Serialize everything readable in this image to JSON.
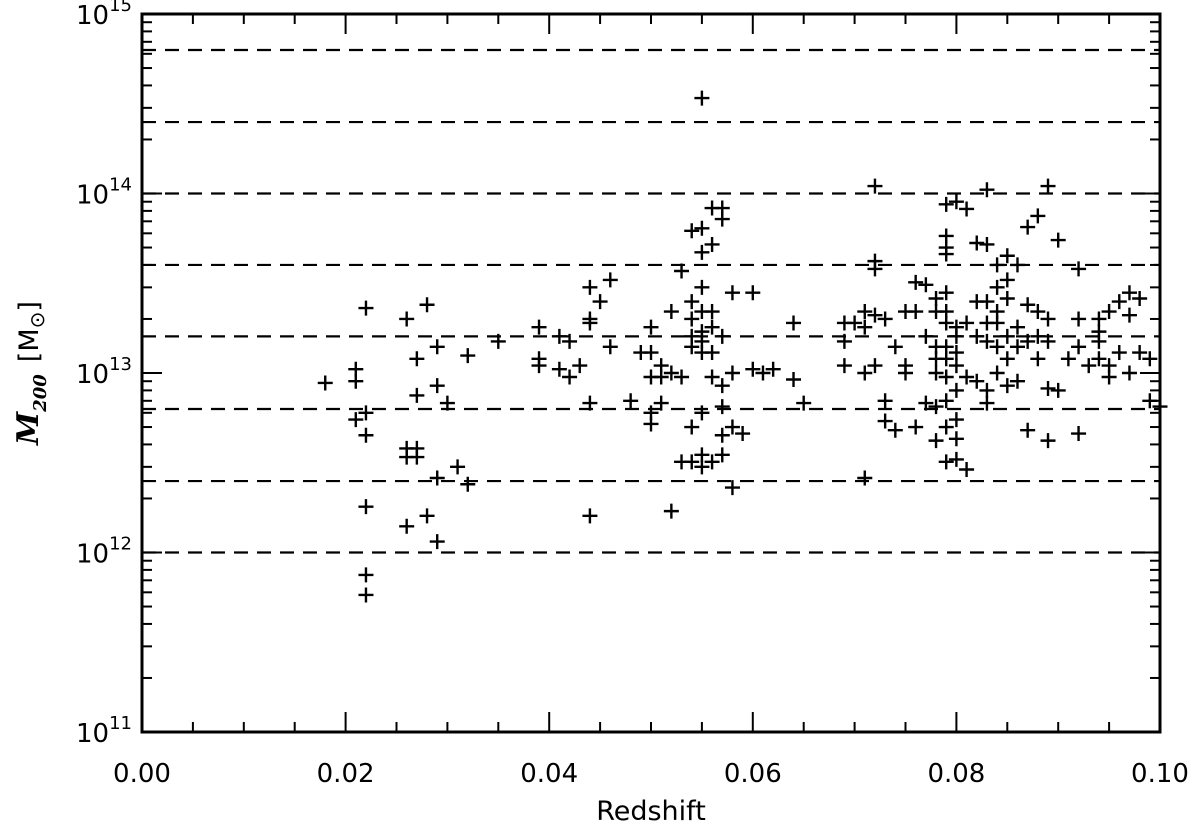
{
  "chart_data": {
    "type": "scatter",
    "marker": "plus",
    "title": "",
    "xlabel": "Redshift",
    "ylabel": {
      "symbol": "M",
      "subscript": "200",
      "unit_open": "[M",
      "unit_symbol": "⊙",
      "unit_close": "]"
    },
    "xlim": [
      0.0,
      0.1
    ],
    "ylim": [
      100000000000.0,
      1000000000000000.0
    ],
    "yscale": "log",
    "grid": false,
    "x_ticks": [
      {
        "value": 0.0,
        "label": "0.00"
      },
      {
        "value": 0.02,
        "label": "0.02"
      },
      {
        "value": 0.04,
        "label": "0.04"
      },
      {
        "value": 0.06,
        "label": "0.06"
      },
      {
        "value": 0.08,
        "label": "0.08"
      },
      {
        "value": 0.1,
        "label": "0.10"
      }
    ],
    "y_ticks": [
      {
        "value": 100000000000.0,
        "base": "10",
        "exp": "11"
      },
      {
        "value": 1000000000000.0,
        "base": "10",
        "exp": "12"
      },
      {
        "value": 10000000000000.0,
        "base": "10",
        "exp": "13"
      },
      {
        "value": 100000000000000.0,
        "base": "10",
        "exp": "14"
      },
      {
        "value": 1000000000000000.0,
        "base": "10",
        "exp": "15"
      }
    ],
    "reference_lines": [
      1000000000000.0,
      2500000000000.0,
      6300000000000.0,
      16000000000000.0,
      40000000000000.0,
      100000000000000.0,
      250000000000000.0,
      630000000000000.0
    ],
    "points": [
      [
        0.018,
        8800000000000.0
      ],
      [
        0.021,
        10500000000000.0
      ],
      [
        0.021,
        9000000000000.0
      ],
      [
        0.021,
        5500000000000.0
      ],
      [
        0.022,
        23000000000000.0
      ],
      [
        0.022,
        6000000000000.0
      ],
      [
        0.022,
        4500000000000.0
      ],
      [
        0.022,
        1800000000000.0
      ],
      [
        0.022,
        750000000000.0
      ],
      [
        0.022,
        580000000000.0
      ],
      [
        0.026,
        20000000000000.0
      ],
      [
        0.026,
        3800000000000.0
      ],
      [
        0.026,
        3400000000000.0
      ],
      [
        0.026,
        1400000000000.0
      ],
      [
        0.027,
        12000000000000.0
      ],
      [
        0.027,
        7500000000000.0
      ],
      [
        0.027,
        3800000000000.0
      ],
      [
        0.027,
        3400000000000.0
      ],
      [
        0.028,
        24000000000000.0
      ],
      [
        0.028,
        1600000000000.0
      ],
      [
        0.029,
        14000000000000.0
      ],
      [
        0.029,
        8500000000000.0
      ],
      [
        0.029,
        2600000000000.0
      ],
      [
        0.029,
        1150000000000.0
      ],
      [
        0.03,
        6800000000000.0
      ],
      [
        0.031,
        3000000000000.0
      ],
      [
        0.032,
        12500000000000.0
      ],
      [
        0.032,
        2400000000000.0
      ],
      [
        0.035,
        15000000000000.0
      ],
      [
        0.039,
        18000000000000.0
      ],
      [
        0.039,
        12000000000000.0
      ],
      [
        0.039,
        11000000000000.0
      ],
      [
        0.041,
        16000000000000.0
      ],
      [
        0.041,
        10500000000000.0
      ],
      [
        0.042,
        15000000000000.0
      ],
      [
        0.042,
        9500000000000.0
      ],
      [
        0.043,
        11000000000000.0
      ],
      [
        0.044,
        30000000000000.0
      ],
      [
        0.044,
        20000000000000.0
      ],
      [
        0.044,
        19000000000000.0
      ],
      [
        0.044,
        6800000000000.0
      ],
      [
        0.044,
        1600000000000.0
      ],
      [
        0.045,
        25000000000000.0
      ],
      [
        0.046,
        33000000000000.0
      ],
      [
        0.046,
        14000000000000.0
      ],
      [
        0.048,
        7000000000000.0
      ],
      [
        0.049,
        13000000000000.0
      ],
      [
        0.05,
        18000000000000.0
      ],
      [
        0.05,
        13000000000000.0
      ],
      [
        0.05,
        9500000000000.0
      ],
      [
        0.05,
        6000000000000.0
      ],
      [
        0.05,
        5200000000000.0
      ],
      [
        0.051,
        11000000000000.0
      ],
      [
        0.051,
        9500000000000.0
      ],
      [
        0.051,
        6800000000000.0
      ],
      [
        0.052,
        22000000000000.0
      ],
      [
        0.052,
        10000000000000.0
      ],
      [
        0.052,
        1700000000000.0
      ],
      [
        0.053,
        37000000000000.0
      ],
      [
        0.053,
        9500000000000.0
      ],
      [
        0.053,
        3200000000000.0
      ],
      [
        0.054,
        25000000000000.0
      ],
      [
        0.054,
        20000000000000.0
      ],
      [
        0.054,
        16000000000000.0
      ],
      [
        0.054,
        14000000000000.0
      ],
      [
        0.054,
        62000000000000.0
      ],
      [
        0.054,
        5000000000000.0
      ],
      [
        0.054,
        3200000000000.0
      ],
      [
        0.055,
        340000000000000.0
      ],
      [
        0.055,
        64000000000000.0
      ],
      [
        0.055,
        47000000000000.0
      ],
      [
        0.055,
        30000000000000.0
      ],
      [
        0.055,
        22000000000000.0
      ],
      [
        0.055,
        17000000000000.0
      ],
      [
        0.055,
        15000000000000.0
      ],
      [
        0.055,
        13000000000000.0
      ],
      [
        0.055,
        6000000000000.0
      ],
      [
        0.055,
        3500000000000.0
      ],
      [
        0.055,
        3000000000000.0
      ],
      [
        0.056,
        83000000000000.0
      ],
      [
        0.056,
        52000000000000.0
      ],
      [
        0.056,
        22000000000000.0
      ],
      [
        0.056,
        18000000000000.0
      ],
      [
        0.056,
        13000000000000.0
      ],
      [
        0.056,
        9500000000000.0
      ],
      [
        0.056,
        3200000000000.0
      ],
      [
        0.057,
        83000000000000.0
      ],
      [
        0.057,
        72000000000000.0
      ],
      [
        0.057,
        16000000000000.0
      ],
      [
        0.057,
        8500000000000.0
      ],
      [
        0.057,
        6500000000000.0
      ],
      [
        0.057,
        4500000000000.0
      ],
      [
        0.057,
        3500000000000.0
      ],
      [
        0.058,
        28000000000000.0
      ],
      [
        0.058,
        10000000000000.0
      ],
      [
        0.058,
        5000000000000.0
      ],
      [
        0.058,
        2300000000000.0
      ],
      [
        0.059,
        4600000000000.0
      ],
      [
        0.06,
        28000000000000.0
      ],
      [
        0.06,
        10500000000000.0
      ],
      [
        0.061,
        10000000000000.0
      ],
      [
        0.062,
        10500000000000.0
      ],
      [
        0.064,
        19000000000000.0
      ],
      [
        0.064,
        9200000000000.0
      ],
      [
        0.065,
        6800000000000.0
      ],
      [
        0.069,
        19000000000000.0
      ],
      [
        0.069,
        15000000000000.0
      ],
      [
        0.069,
        11000000000000.0
      ],
      [
        0.07,
        19000000000000.0
      ],
      [
        0.071,
        22000000000000.0
      ],
      [
        0.071,
        18000000000000.0
      ],
      [
        0.071,
        10000000000000.0
      ],
      [
        0.071,
        2600000000000.0
      ],
      [
        0.072,
        110000000000000.0
      ],
      [
        0.072,
        42000000000000.0
      ],
      [
        0.072,
        38000000000000.0
      ],
      [
        0.072,
        21000000000000.0
      ],
      [
        0.072,
        11000000000000.0
      ],
      [
        0.073,
        20000000000000.0
      ],
      [
        0.073,
        7000000000000.0
      ],
      [
        0.073,
        5400000000000.0
      ],
      [
        0.074,
        14000000000000.0
      ],
      [
        0.074,
        4800000000000.0
      ],
      [
        0.075,
        22000000000000.0
      ],
      [
        0.075,
        11000000000000.0
      ],
      [
        0.075,
        10000000000000.0
      ],
      [
        0.076,
        32000000000000.0
      ],
      [
        0.076,
        22000000000000.0
      ],
      [
        0.076,
        5000000000000.0
      ],
      [
        0.077,
        31000000000000.0
      ],
      [
        0.077,
        16000000000000.0
      ],
      [
        0.077,
        6800000000000.0
      ],
      [
        0.078,
        26000000000000.0
      ],
      [
        0.078,
        22000000000000.0
      ],
      [
        0.078,
        14000000000000.0
      ],
      [
        0.078,
        12000000000000.0
      ],
      [
        0.078,
        10000000000000.0
      ],
      [
        0.078,
        6500000000000.0
      ],
      [
        0.078,
        4200000000000.0
      ],
      [
        0.079,
        87000000000000.0
      ],
      [
        0.079,
        58000000000000.0
      ],
      [
        0.079,
        50000000000000.0
      ],
      [
        0.079,
        46000000000000.0
      ],
      [
        0.079,
        28000000000000.0
      ],
      [
        0.079,
        22000000000000.0
      ],
      [
        0.079,
        19000000000000.0
      ],
      [
        0.079,
        14000000000000.0
      ],
      [
        0.079,
        12000000000000.0
      ],
      [
        0.079,
        9500000000000.0
      ],
      [
        0.079,
        7000000000000.0
      ],
      [
        0.079,
        5000000000000.0
      ],
      [
        0.079,
        3200000000000.0
      ],
      [
        0.08,
        90000000000000.0
      ],
      [
        0.08,
        18000000000000.0
      ],
      [
        0.08,
        16000000000000.0
      ],
      [
        0.08,
        13000000000000.0
      ],
      [
        0.08,
        11000000000000.0
      ],
      [
        0.08,
        8000000000000.0
      ],
      [
        0.08,
        5500000000000.0
      ],
      [
        0.08,
        4300000000000.0
      ],
      [
        0.08,
        3300000000000.0
      ],
      [
        0.081,
        82000000000000.0
      ],
      [
        0.081,
        19000000000000.0
      ],
      [
        0.081,
        9500000000000.0
      ],
      [
        0.081,
        2900000000000.0
      ],
      [
        0.082,
        53000000000000.0
      ],
      [
        0.082,
        25000000000000.0
      ],
      [
        0.082,
        16000000000000.0
      ],
      [
        0.082,
        9000000000000.0
      ],
      [
        0.083,
        105000000000000.0
      ],
      [
        0.083,
        52000000000000.0
      ],
      [
        0.083,
        25000000000000.0
      ],
      [
        0.083,
        19000000000000.0
      ],
      [
        0.083,
        15000000000000.0
      ],
      [
        0.083,
        8000000000000.0
      ],
      [
        0.083,
        6800000000000.0
      ],
      [
        0.084,
        40000000000000.0
      ],
      [
        0.084,
        30000000000000.0
      ],
      [
        0.084,
        22000000000000.0
      ],
      [
        0.084,
        19000000000000.0
      ],
      [
        0.084,
        14000000000000.0
      ],
      [
        0.084,
        10000000000000.0
      ],
      [
        0.085,
        45000000000000.0
      ],
      [
        0.085,
        33000000000000.0
      ],
      [
        0.085,
        26000000000000.0
      ],
      [
        0.085,
        16000000000000.0
      ],
      [
        0.085,
        12000000000000.0
      ],
      [
        0.085,
        8500000000000.0
      ],
      [
        0.086,
        40000000000000.0
      ],
      [
        0.086,
        18000000000000.0
      ],
      [
        0.086,
        14000000000000.0
      ],
      [
        0.086,
        9000000000000.0
      ],
      [
        0.087,
        65000000000000.0
      ],
      [
        0.087,
        24000000000000.0
      ],
      [
        0.087,
        15000000000000.0
      ],
      [
        0.087,
        4800000000000.0
      ],
      [
        0.088,
        75000000000000.0
      ],
      [
        0.088,
        22000000000000.0
      ],
      [
        0.088,
        16000000000000.0
      ],
      [
        0.088,
        12000000000000.0
      ],
      [
        0.089,
        110000000000000.0
      ],
      [
        0.089,
        20000000000000.0
      ],
      [
        0.089,
        15000000000000.0
      ],
      [
        0.089,
        8200000000000.0
      ],
      [
        0.089,
        4200000000000.0
      ],
      [
        0.09,
        55000000000000.0
      ],
      [
        0.09,
        8000000000000.0
      ],
      [
        0.091,
        12000000000000.0
      ],
      [
        0.092,
        38000000000000.0
      ],
      [
        0.092,
        20000000000000.0
      ],
      [
        0.092,
        14000000000000.0
      ],
      [
        0.092,
        4600000000000.0
      ],
      [
        0.093,
        11000000000000.0
      ],
      [
        0.094,
        20000000000000.0
      ],
      [
        0.094,
        17000000000000.0
      ],
      [
        0.094,
        15000000000000.0
      ],
      [
        0.094,
        12000000000000.0
      ],
      [
        0.095,
        22000000000000.0
      ],
      [
        0.095,
        11000000000000.0
      ],
      [
        0.095,
        9500000000000.0
      ],
      [
        0.096,
        25000000000000.0
      ],
      [
        0.096,
        13000000000000.0
      ],
      [
        0.097,
        28000000000000.0
      ],
      [
        0.097,
        21000000000000.0
      ],
      [
        0.097,
        10000000000000.0
      ],
      [
        0.098,
        26000000000000.0
      ],
      [
        0.098,
        13000000000000.0
      ],
      [
        0.099,
        12000000000000.0
      ],
      [
        0.099,
        7000000000000.0
      ],
      [
        0.1,
        6500000000000.0
      ]
    ]
  }
}
